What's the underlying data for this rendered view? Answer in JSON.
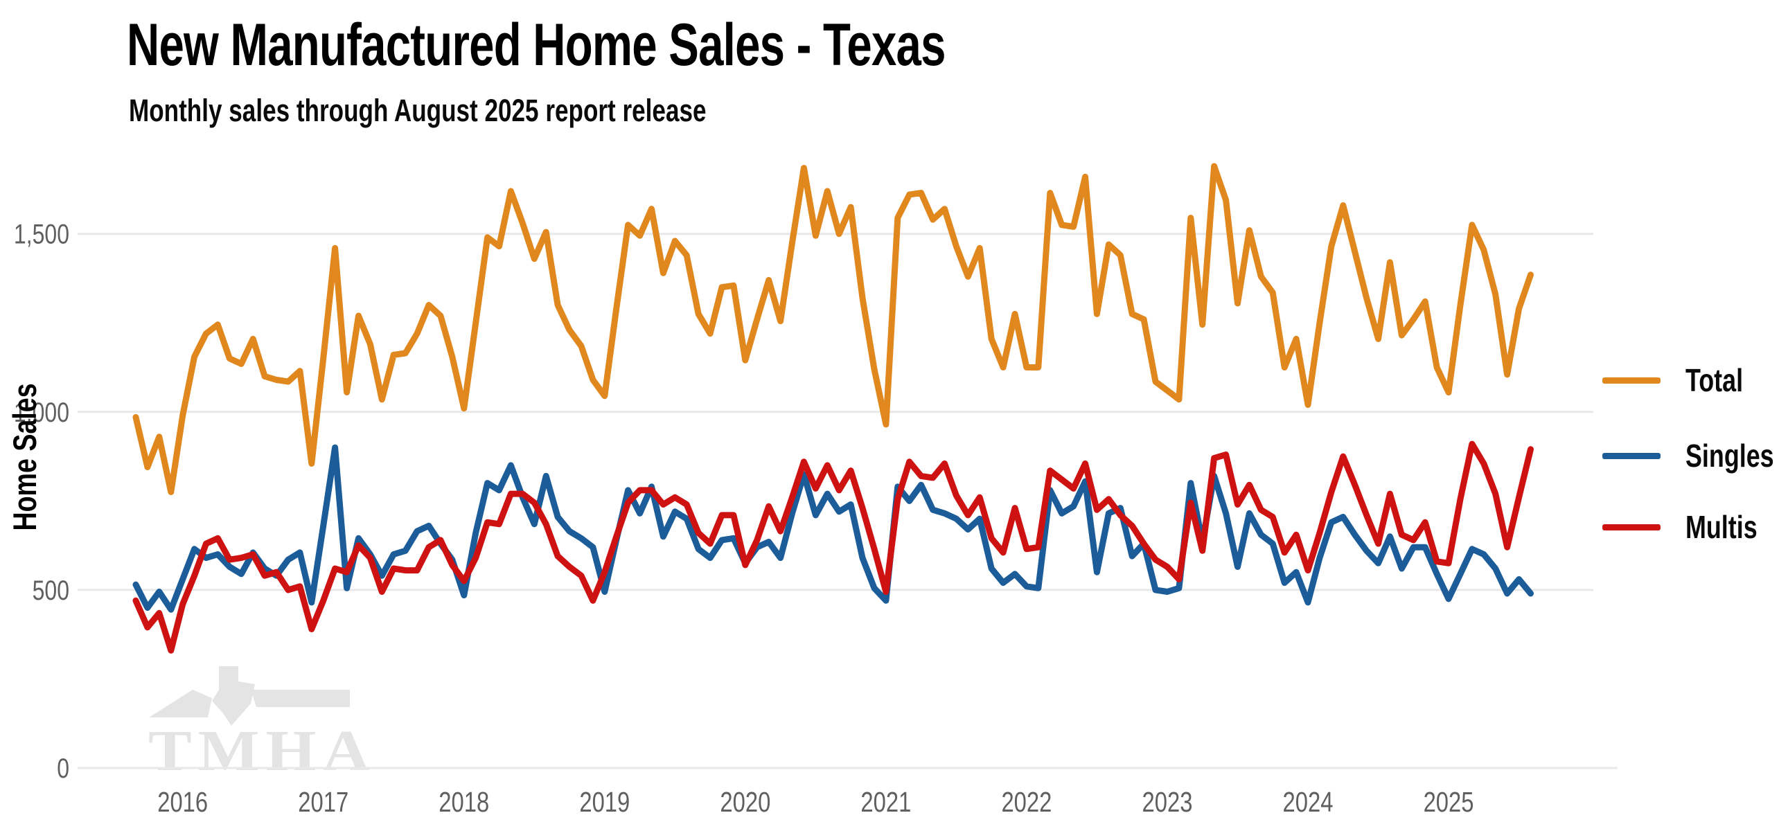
{
  "header": {
    "title": "New Manufactured Home Sales - Texas",
    "subtitle": "Monthly sales through August 2025 report release"
  },
  "y_axis": {
    "label": "Home Sales",
    "tick_values": [
      0,
      500,
      1000,
      1500
    ],
    "tick_labels": [
      "0",
      "500",
      "1,000",
      "1,500"
    ]
  },
  "x_axis": {
    "year_labels": [
      "2016",
      "2017",
      "2018",
      "2019",
      "2020",
      "2021",
      "2022",
      "2023",
      "2024",
      "2025"
    ]
  },
  "legend": {
    "items": [
      {
        "label": "Total",
        "color": "#E0871E"
      },
      {
        "label": "Singles",
        "color": "#1B5C99"
      },
      {
        "label": "Multis",
        "color": "#CE1111"
      }
    ]
  },
  "watermark": {
    "text": "TMHA"
  },
  "chart_data": {
    "type": "line",
    "title": "New Manufactured Home Sales - Texas",
    "subtitle": "Monthly sales through August 2025 report release",
    "xlabel": "",
    "ylabel": "Home Sales",
    "frequency": "monthly",
    "x_start": "2015-09",
    "x_end": "2025-08",
    "ylim": [
      0,
      1750
    ],
    "grid": "horizontal",
    "legend_position": "right",
    "series": [
      {
        "name": "Total",
        "color": "#E0871E",
        "values": [
          985,
          845,
          930,
          775,
          990,
          1155,
          1220,
          1245,
          1150,
          1135,
          1205,
          1100,
          1090,
          1085,
          1115,
          855,
          1150,
          1460,
          1055,
          1270,
          1190,
          1035,
          1160,
          1165,
          1220,
          1300,
          1270,
          1155,
          1010,
          1250,
          1490,
          1465,
          1620,
          1530,
          1430,
          1505,
          1300,
          1230,
          1185,
          1090,
          1045,
          1290,
          1525,
          1495,
          1570,
          1390,
          1480,
          1440,
          1275,
          1220,
          1350,
          1355,
          1145,
          1260,
          1370,
          1255,
          1475,
          1685,
          1495,
          1620,
          1500,
          1575,
          1320,
          1120,
          965,
          1545,
          1610,
          1615,
          1540,
          1570,
          1465,
          1380,
          1460,
          1205,
          1125,
          1275,
          1125,
          1125,
          1615,
          1525,
          1520,
          1660,
          1275,
          1470,
          1440,
          1275,
          1260,
          1085,
          1060,
          1035,
          1545,
          1245,
          1690,
          1595,
          1305,
          1510,
          1380,
          1335,
          1125,
          1205,
          1020,
          1250,
          1465,
          1580,
          1450,
          1320,
          1205,
          1420,
          1215,
          1260,
          1310,
          1125,
          1055,
          1300,
          1525,
          1455,
          1330,
          1105,
          1290,
          1385
        ]
      },
      {
        "name": "Singles",
        "color": "#1B5C99",
        "values": [
          515,
          450,
          495,
          445,
          530,
          615,
          590,
          600,
          565,
          545,
          605,
          560,
          540,
          585,
          605,
          465,
          680,
          900,
          505,
          645,
          600,
          540,
          600,
          610,
          665,
          680,
          630,
          585,
          485,
          660,
          800,
          780,
          850,
          760,
          685,
          820,
          705,
          665,
          645,
          620,
          495,
          640,
          780,
          715,
          790,
          650,
          720,
          700,
          615,
          590,
          640,
          645,
          575,
          620,
          635,
          590,
          715,
          825,
          710,
          770,
          720,
          740,
          590,
          505,
          470,
          790,
          750,
          795,
          725,
          715,
          700,
          670,
          700,
          560,
          520,
          545,
          510,
          505,
          780,
          715,
          735,
          805,
          550,
          715,
          730,
          595,
          630,
          500,
          495,
          505,
          800,
          635,
          820,
          715,
          565,
          715,
          655,
          630,
          520,
          550,
          465,
          590,
          690,
          705,
          655,
          610,
          575,
          650,
          560,
          620,
          620,
          545,
          475,
          545,
          615,
          600,
          560,
          490,
          530,
          490
        ]
      },
      {
        "name": "Multis",
        "color": "#CE1111",
        "values": [
          470,
          395,
          435,
          330,
          460,
          540,
          630,
          645,
          585,
          590,
          600,
          540,
          550,
          500,
          510,
          390,
          470,
          560,
          550,
          625,
          590,
          495,
          560,
          555,
          555,
          620,
          640,
          570,
          525,
          590,
          690,
          685,
          770,
          770,
          745,
          685,
          595,
          565,
          540,
          470,
          550,
          650,
          745,
          780,
          780,
          740,
          760,
          740,
          660,
          630,
          710,
          710,
          570,
          640,
          735,
          665,
          760,
          860,
          785,
          850,
          780,
          835,
          730,
          615,
          495,
          755,
          860,
          820,
          815,
          855,
          765,
          710,
          760,
          645,
          605,
          730,
          615,
          620,
          835,
          810,
          785,
          855,
          725,
          755,
          710,
          680,
          630,
          585,
          565,
          530,
          745,
          610,
          870,
          880,
          740,
          795,
          725,
          705,
          605,
          655,
          555,
          660,
          775,
          875,
          795,
          710,
          630,
          770,
          655,
          640,
          690,
          580,
          575,
          755,
          910,
          855,
          770,
          620,
          760,
          895
        ]
      }
    ]
  }
}
